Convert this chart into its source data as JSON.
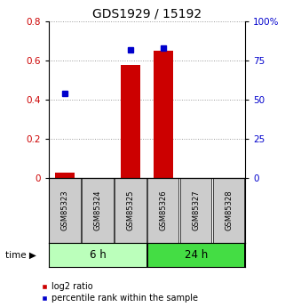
{
  "title": "GDS1929 / 15192",
  "samples": [
    "GSM85323",
    "GSM85324",
    "GSM85325",
    "GSM85326",
    "GSM85327",
    "GSM85328"
  ],
  "log2_ratio": [
    0.03,
    0.0,
    0.58,
    0.65,
    0.0,
    0.0
  ],
  "percentile_rank": [
    54.0,
    0.0,
    82.0,
    83.0,
    0.0,
    0.0
  ],
  "left_ylim": [
    0,
    0.8
  ],
  "right_ylim": [
    0,
    100
  ],
  "left_yticks": [
    0,
    0.2,
    0.4,
    0.6,
    0.8
  ],
  "right_yticks": [
    0,
    25,
    50,
    75,
    100
  ],
  "right_yticklabels": [
    "0",
    "25",
    "50",
    "75",
    "100%"
  ],
  "bar_color": "#cc0000",
  "square_color": "#0000cc",
  "group1_label": "6 h",
  "group2_label": "24 h",
  "group1_color": "#bbffbb",
  "group2_color": "#44dd44",
  "group1_indices": [
    0,
    1,
    2
  ],
  "group2_indices": [
    3,
    4,
    5
  ],
  "legend_bar_label": "log2 ratio",
  "legend_sq_label": "percentile rank within the sample",
  "time_label": "time",
  "bg_color": "#ffffff",
  "sample_box_color": "#cccccc",
  "dotted_line_color": "#999999"
}
